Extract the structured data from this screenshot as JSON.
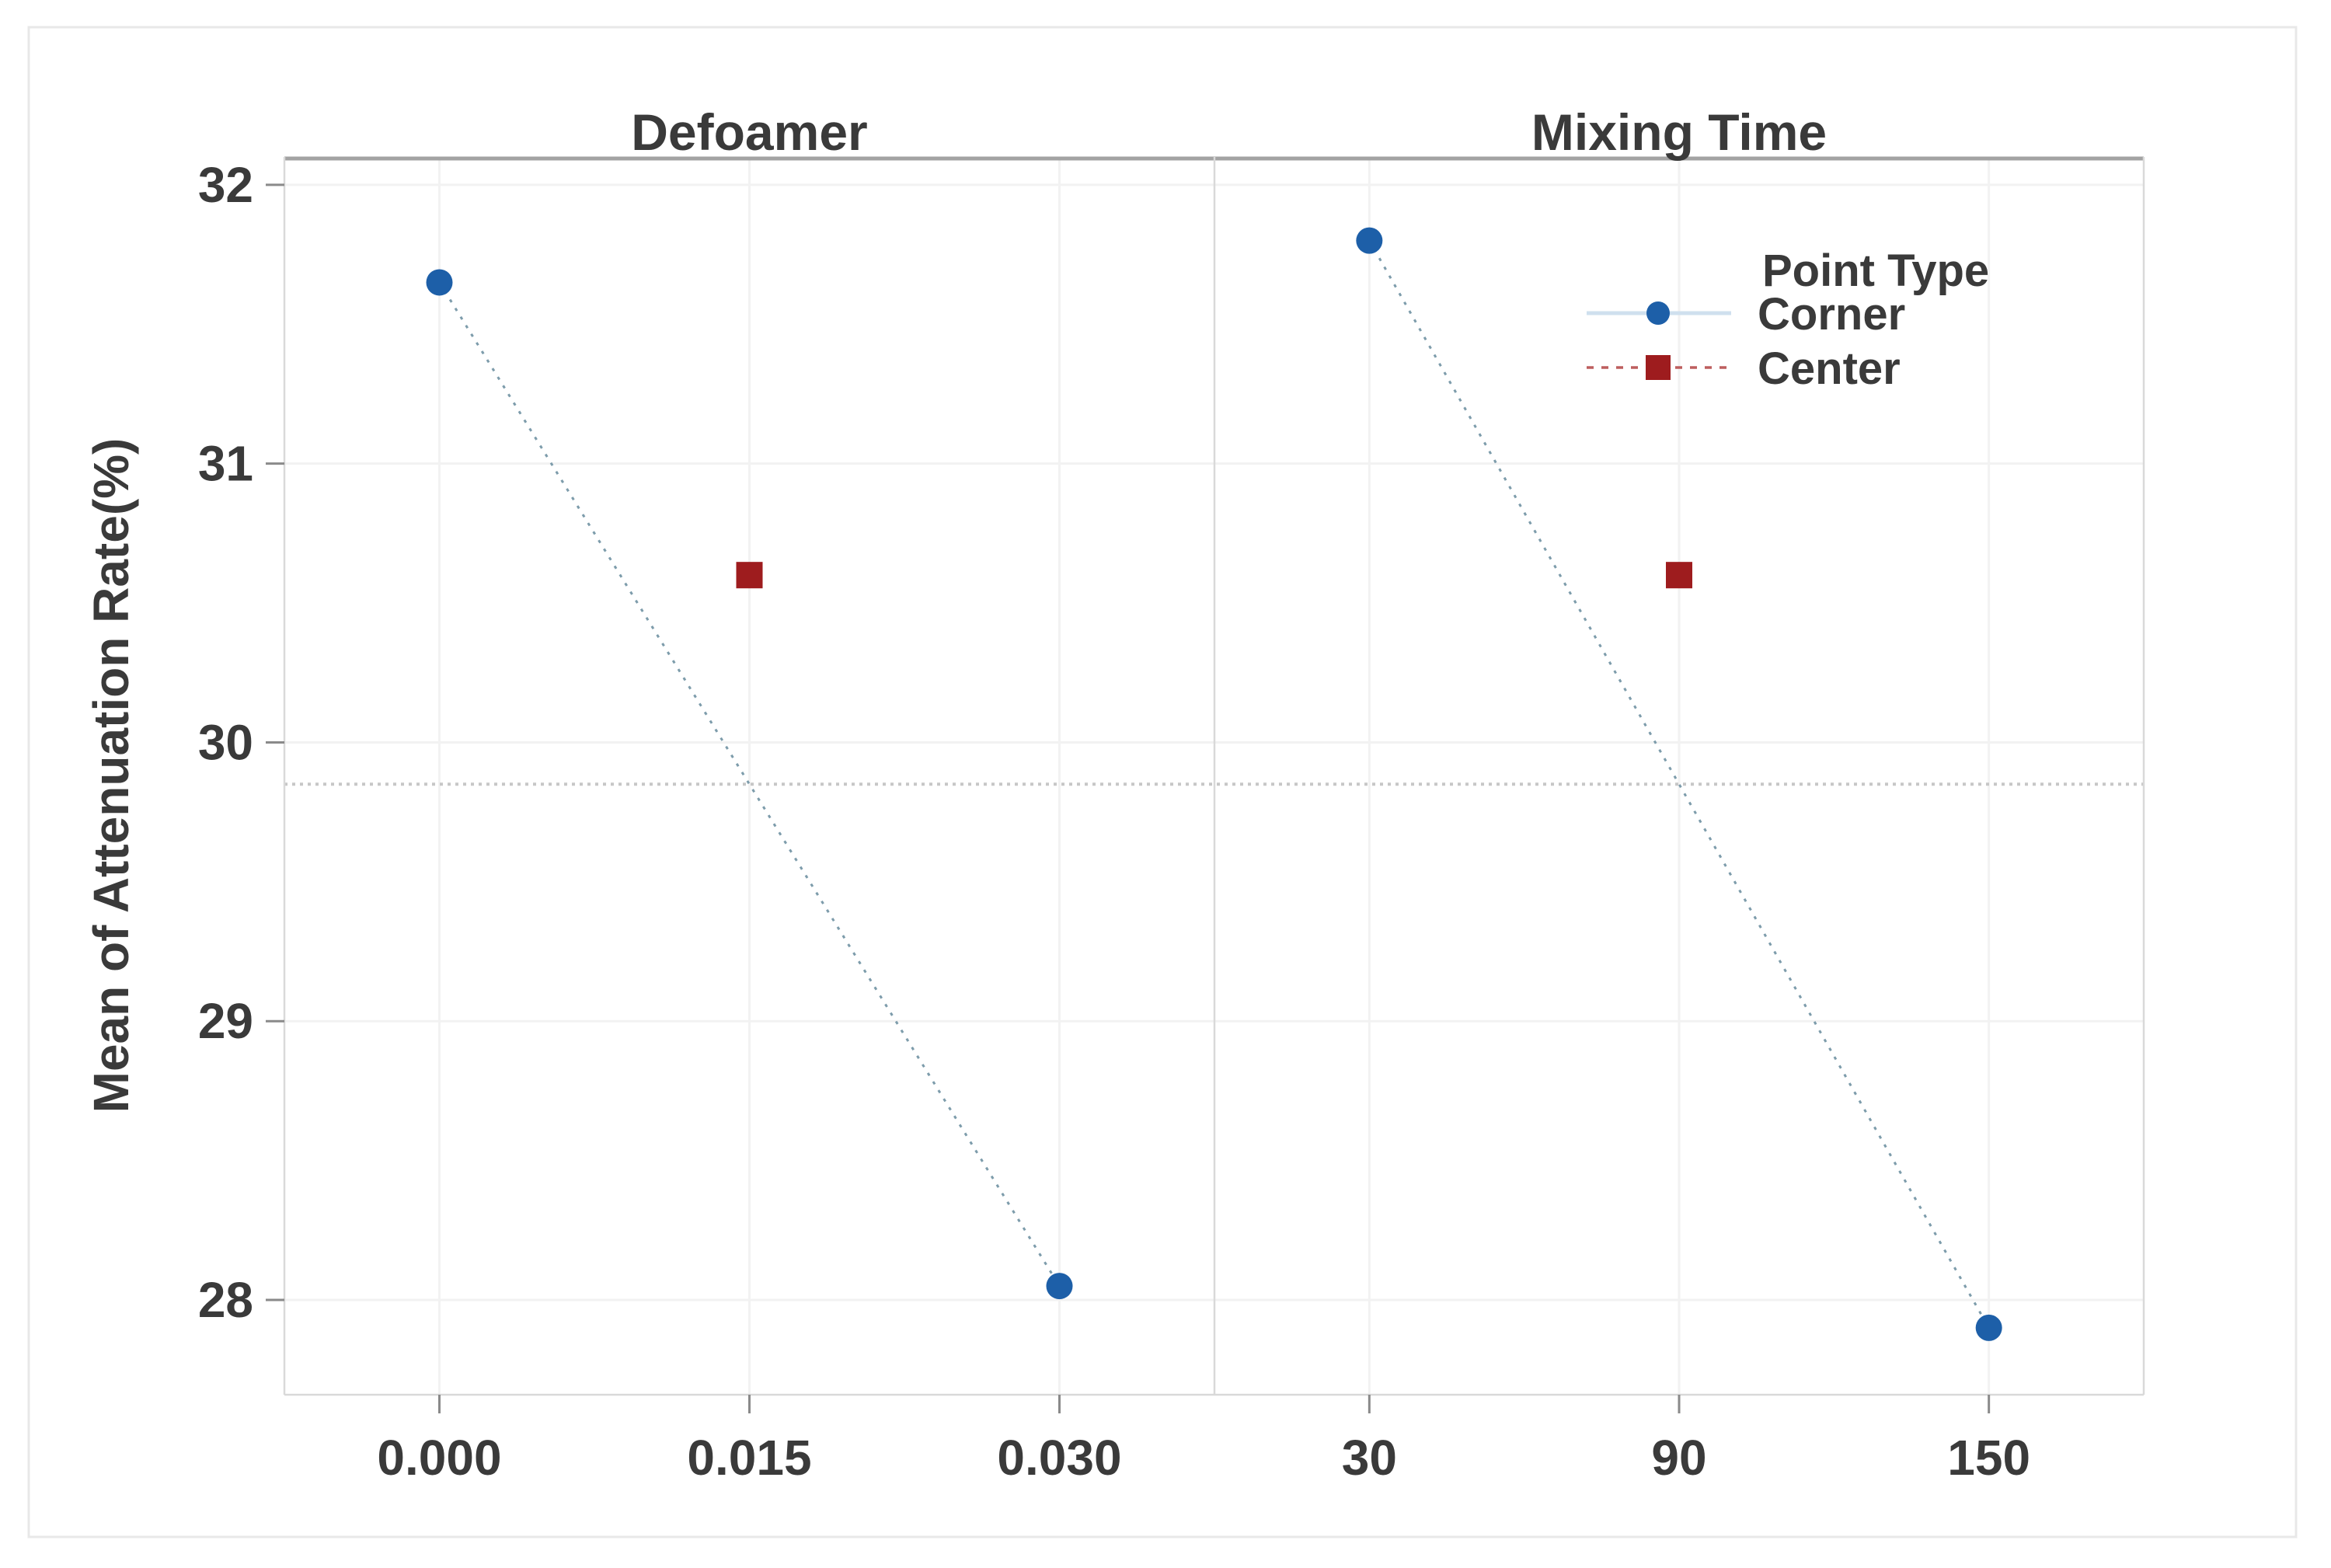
{
  "figure": {
    "background": "#ffffff",
    "frame_color": "#e8e8e8"
  },
  "colors": {
    "corner_marker": "#1d5fa8",
    "center_marker": "#9e1c1e",
    "corner_connector": "#7d9cab",
    "legend_corner_line": "#cfe0ee",
    "legend_center_line": "#bd5e5e",
    "grid": "#f2f2f2",
    "mean_line": "#c7c7c7",
    "border_top": "#a3a3a3",
    "border": "#d9d9d9",
    "tick": "#8a8a8a",
    "text": "#3a3a3a"
  },
  "chart_data": {
    "type": "line",
    "ylabel": "Mean of Attenuation Rate(%)",
    "yticks": [
      28,
      29,
      30,
      31,
      32
    ],
    "ylim": [
      27.66,
      32.1
    ],
    "grid": true,
    "reference_line": {
      "value": 29.85,
      "style": "dotted"
    },
    "panels": [
      {
        "title": "Defoamer",
        "categories": [
          "0.000",
          "0.015",
          "0.030"
        ],
        "series": [
          {
            "name": "Corner",
            "marker": "circle",
            "slots": [
              0,
              2
            ],
            "values": [
              31.65,
              28.05
            ],
            "connect": true
          },
          {
            "name": "Center",
            "marker": "square",
            "slots": [
              1
            ],
            "values": [
              30.6
            ],
            "connect": false
          }
        ]
      },
      {
        "title": "Mixing Time",
        "categories": [
          "30",
          "90",
          "150"
        ],
        "series": [
          {
            "name": "Corner",
            "marker": "circle",
            "slots": [
              0,
              2
            ],
            "values": [
              31.8,
              27.9
            ],
            "connect": true
          },
          {
            "name": "Center",
            "marker": "square",
            "slots": [
              1
            ],
            "values": [
              30.6
            ],
            "connect": false
          }
        ]
      }
    ],
    "legend": {
      "title": "Point Type",
      "position": "top-right-inside",
      "entries": [
        {
          "label": "Corner",
          "marker": "circle",
          "line": "solid"
        },
        {
          "label": "Center",
          "marker": "square",
          "line": "dashed"
        }
      ]
    }
  }
}
